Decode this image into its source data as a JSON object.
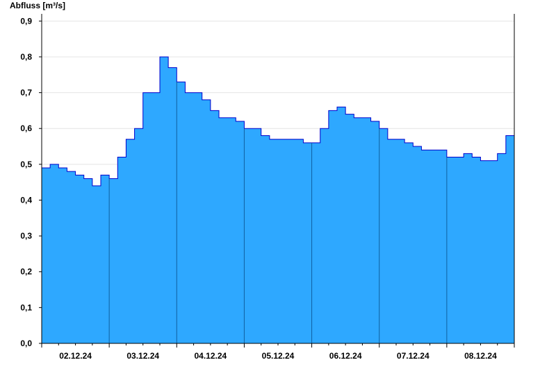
{
  "chart_data": {
    "type": "area",
    "ylabel": "Abfluss [m³/s]",
    "categories": [
      null,
      null,
      null,
      null,
      "02.12.24",
      null,
      null,
      null,
      null,
      null,
      null,
      null,
      "03.12.24",
      null,
      null,
      null,
      null,
      null,
      null,
      null,
      "04.12.24",
      null,
      null,
      null,
      null,
      null,
      null,
      null,
      "05.12.24",
      null,
      null,
      null,
      null,
      null,
      null,
      null,
      "06.12.24",
      null,
      null,
      null,
      null,
      null,
      null,
      null,
      "07.12.24",
      null,
      null,
      null,
      null,
      null,
      null,
      null,
      "08.12.24",
      null,
      null,
      null
    ],
    "values": [
      0.49,
      0.5,
      0.49,
      0.48,
      0.47,
      0.46,
      0.44,
      0.47,
      0.46,
      0.52,
      0.57,
      0.6,
      0.7,
      0.7,
      0.8,
      0.77,
      0.73,
      0.7,
      0.7,
      0.68,
      0.65,
      0.63,
      0.63,
      0.62,
      0.6,
      0.6,
      0.58,
      0.57,
      0.57,
      0.57,
      0.57,
      0.56,
      0.56,
      0.6,
      0.65,
      0.66,
      0.64,
      0.63,
      0.63,
      0.62,
      0.6,
      0.57,
      0.57,
      0.56,
      0.55,
      0.54,
      0.54,
      0.54,
      0.52,
      0.52,
      0.53,
      0.52,
      0.51,
      0.51,
      0.53,
      0.58
    ],
    "color": "#2ea8ff",
    "line_color": "#0000cc",
    "ylim": [
      0,
      0.92
    ],
    "yticks": [
      {
        "value": 0,
        "label": "0,0"
      },
      {
        "value": 0.1,
        "label": "0,1"
      },
      {
        "value": 0.2,
        "label": "0,2"
      },
      {
        "value": 0.3,
        "label": "0,3"
      },
      {
        "value": 0.4,
        "label": "0,4"
      },
      {
        "value": 0.5,
        "label": "0,5"
      },
      {
        "value": 0.6,
        "label": "0,6"
      },
      {
        "value": 0.7,
        "label": "0,7"
      },
      {
        "value": 0.8,
        "label": "0,8"
      },
      {
        "value": 0.9,
        "label": "0,9"
      }
    ],
    "grid": true
  }
}
